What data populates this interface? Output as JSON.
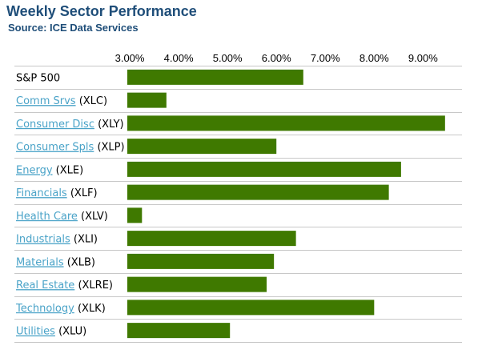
{
  "header": {
    "title": "Weekly Sector Performance",
    "source": "Source: ICE Data Services"
  },
  "colors": {
    "bar": "#3f7900",
    "separator": "#c8c8c8",
    "link": "#4aa3c8",
    "title": "#1f4e79"
  },
  "chart_data": {
    "type": "bar",
    "orientation": "horizontal",
    "title": "Weekly Sector Performance",
    "subtitle": "Source: ICE Data Services",
    "xlim": [
      2.95,
      9.6
    ],
    "ticks": [
      3,
      4,
      5,
      6,
      7,
      8,
      9
    ],
    "tick_labels": [
      "3.00%",
      "4.00%",
      "5.00%",
      "6.00%",
      "7.00%",
      "8.00%",
      "9.00%"
    ],
    "categories": [
      {
        "name": "S&P 500",
        "ticker": "",
        "link": false
      },
      {
        "name": "Comm Srvs",
        "ticker": "(XLC)",
        "link": true
      },
      {
        "name": "Consumer Disc",
        "ticker": "(XLY)",
        "link": true
      },
      {
        "name": "Consumer Spls",
        "ticker": "(XLP)",
        "link": true
      },
      {
        "name": "Energy",
        "ticker": "(XLE)",
        "link": true
      },
      {
        "name": "Financials",
        "ticker": "(XLF)",
        "link": true
      },
      {
        "name": "Health Care",
        "ticker": "(XLV)",
        "link": true
      },
      {
        "name": "Industrials",
        "ticker": "(XLI)",
        "link": true
      },
      {
        "name": "Materials",
        "ticker": "(XLB)",
        "link": true
      },
      {
        "name": "Real Estate",
        "ticker": "(XLRE)",
        "link": true
      },
      {
        "name": "Technology",
        "ticker": "(XLK)",
        "link": true
      },
      {
        "name": "Utilities",
        "ticker": "(XLU)",
        "link": true
      }
    ],
    "values": [
      6.55,
      3.75,
      9.45,
      6.0,
      8.55,
      8.3,
      3.25,
      6.4,
      5.95,
      5.8,
      8.0,
      5.05
    ],
    "grid": false,
    "legend": "none"
  }
}
